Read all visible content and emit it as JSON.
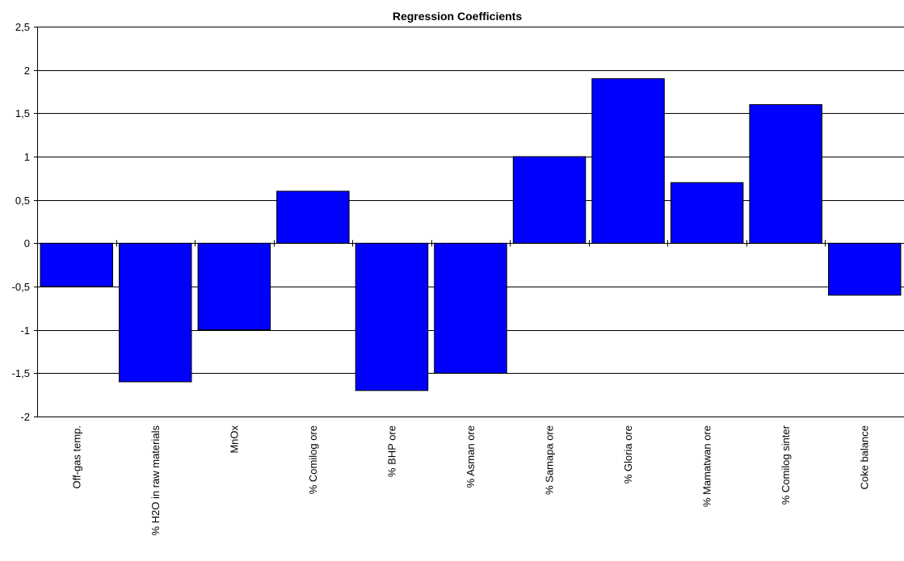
{
  "chart_data": {
    "type": "bar",
    "title": "Regression Coefficients",
    "xlabel": "",
    "ylabel": "",
    "categories": [
      "Off-gas temp.",
      "% H2O in raw materials",
      "MnOx",
      "% Comilog ore",
      "% BHP ore",
      "% Asman ore",
      "% Samapa ore",
      "% Gloria ore",
      "% Mamatwan ore",
      "% Comilog sinter",
      "Coke balance"
    ],
    "values": [
      -0.5,
      -1.6,
      -1.0,
      0.6,
      -1.7,
      -1.5,
      1.0,
      1.9,
      0.7,
      1.6,
      -0.6
    ],
    "ylim": [
      -2,
      2.5
    ],
    "yticks": [
      2.5,
      2,
      1.5,
      1,
      0.5,
      0,
      -0.5,
      -1,
      -1.5,
      -2
    ],
    "ytick_labels": [
      "2,5",
      "2",
      "1,5",
      "1",
      "0,5",
      "0",
      "-0,5",
      "-1",
      "-1,5",
      "-2"
    ],
    "grid": true,
    "legend": "none",
    "colors": {
      "bar_fill": "#0000ff",
      "bar_stroke": "#000000",
      "grid": "#000000",
      "axis": "#000000"
    }
  }
}
